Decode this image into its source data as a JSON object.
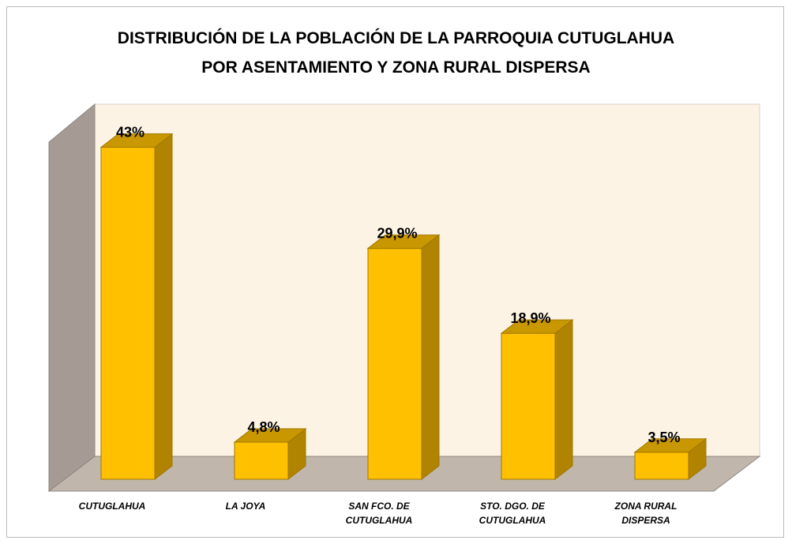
{
  "chart_data": {
    "type": "bar3d",
    "title": "DISTRIBUCIÓN DE LA POBLACIÓN DE LA PARROQUIA CUTUGLAHUA\nPOR ASENTAMIENTO Y ZONA RURAL DISPERSA",
    "categories": [
      "CUTUGLAHUA",
      "LA JOYA",
      "SAN FCO. DE\nCUTUGLAHUA",
      "STO. DGO. DE\nCUTUGLAHUA",
      "ZONA RURAL\nDISPERSA"
    ],
    "values": [
      43,
      4.8,
      29.9,
      18.9,
      3.5
    ],
    "value_labels": [
      "43%",
      "4,8%",
      "29,9%",
      "18,9%",
      "3,5%"
    ],
    "color": "#ffc000"
  }
}
